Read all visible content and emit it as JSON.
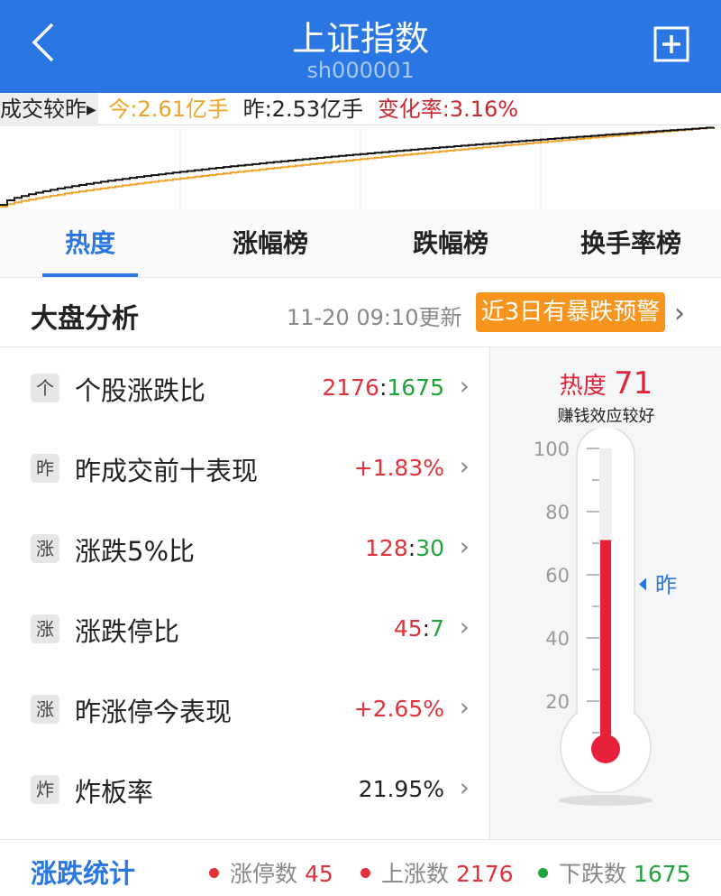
{
  "header": {
    "title": "上证指数",
    "code": "sh000001",
    "back_icon": "chevron-left-icon",
    "add_icon": "plus-square-icon"
  },
  "volume": {
    "label": "成交较昨",
    "today": "今:2.61亿手",
    "yesterday": "昨:2.53亿手",
    "change": "变化率:3.16%",
    "colors": {
      "today": "#f0a32a",
      "yesterday": "#111111"
    }
  },
  "tabs": [
    {
      "label": "热度",
      "active": true
    },
    {
      "label": "涨幅榜"
    },
    {
      "label": "跌幅榜"
    },
    {
      "label": "换手率榜"
    }
  ],
  "analysis": {
    "title": "大盘分析",
    "updated": "11-20 09:10更新",
    "warning": "近3日有暴跌预警"
  },
  "rows": [
    {
      "badge": "个",
      "label": "个股涨跌比",
      "up": "2176",
      "sep": ":",
      "down": "1675"
    },
    {
      "badge": "昨",
      "label": "昨成交前十表现",
      "value": "+1.83%",
      "tone": "red"
    },
    {
      "badge": "涨",
      "label": "涨跌5%比",
      "up": "128",
      "sep": ":",
      "down": "30"
    },
    {
      "badge": "涨",
      "label": "涨跌停比",
      "up": "45",
      "sep": ":",
      "down": "7"
    },
    {
      "badge": "涨",
      "label": "昨涨停今表现",
      "value": "+2.65%",
      "tone": "red"
    },
    {
      "badge": "炸",
      "label": "炸板率",
      "value": "21.95%",
      "tone": "dark"
    }
  ],
  "heat": {
    "label": "热度",
    "value": "71",
    "desc": "赚钱效应较好",
    "scale": [
      "100",
      "80",
      "60",
      "40",
      "20"
    ],
    "level": 71,
    "yesterday_label": "昨",
    "yesterday_level": 57
  },
  "footer": {
    "title": "涨跌统计",
    "stats": [
      {
        "label": "涨停数",
        "value": "45",
        "color": "#e0323b"
      },
      {
        "label": "上涨数",
        "value": "2176",
        "color": "#e0323b"
      },
      {
        "label": "下跌数",
        "value": "1675",
        "color": "#1fa33b"
      }
    ]
  }
}
